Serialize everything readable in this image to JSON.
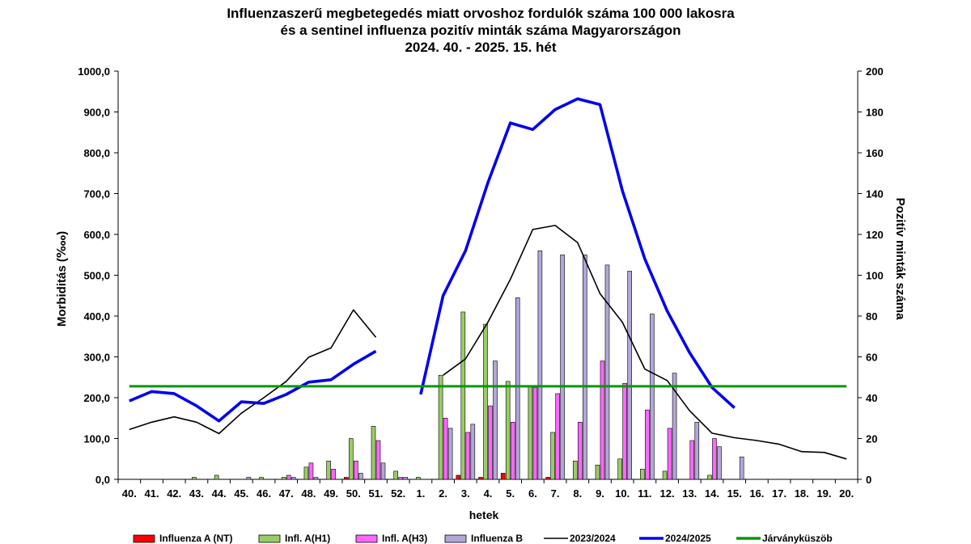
{
  "title_lines": [
    "Influenzaszerű megbetegedés miatt orvoshoz fordulók száma 100 000 lakosra",
    "és a sentinel influenza pozitív minták száma Magyarországon",
    "2024. 40. - 2025. 15. hét"
  ],
  "chart_data": {
    "type": "bar+line",
    "xlabel": "hetek",
    "ylabel": "Morbiditás (‱)",
    "ylabel_right": "Pozitív minták száma",
    "ylim": [
      0,
      1000
    ],
    "ylim_right": [
      0,
      200
    ],
    "yticks": [
      "0,0",
      "100,0",
      "200,0",
      "300,0",
      "400,0",
      "500,0",
      "600,0",
      "700,0",
      "800,0",
      "900,0",
      "1000,0"
    ],
    "yticks_right": [
      "0",
      "20",
      "40",
      "60",
      "80",
      "100",
      "120",
      "140",
      "160",
      "180",
      "200"
    ],
    "grid": false,
    "legend_position": "bottom",
    "categories": [
      "40.",
      "41.",
      "42.",
      "43.",
      "44.",
      "45.",
      "46.",
      "47.",
      "48.",
      "49.",
      "50.",
      "51.",
      "52.",
      "1.",
      "2.",
      "3.",
      "4.",
      "5.",
      "6.",
      "7.",
      "8.",
      "9.",
      "10.",
      "11.",
      "12.",
      "13.",
      "14.",
      "15.",
      "16.",
      "17.",
      "18.",
      "19.",
      "20."
    ],
    "bar_series": [
      {
        "name": "Influenza A (NT)",
        "color": "#ff0000",
        "axis": "right",
        "values": [
          0,
          0,
          0,
          0,
          0,
          0,
          0,
          0,
          0,
          0,
          1,
          0,
          0,
          0,
          0,
          2,
          1,
          3,
          0,
          1,
          0,
          0,
          0,
          0,
          0,
          0,
          0,
          0,
          null,
          null,
          null,
          null,
          null
        ]
      },
      {
        "name": "Infl. A(H1)",
        "color": "#99cc66",
        "axis": "right",
        "values": [
          0,
          0,
          0,
          1,
          2,
          0,
          1,
          1,
          6,
          9,
          20,
          26,
          4,
          1,
          51,
          82,
          76,
          48,
          46,
          23,
          9,
          7,
          10,
          5,
          4,
          0,
          2,
          0,
          null,
          null,
          null,
          null,
          null
        ]
      },
      {
        "name": "Infl. A(H3)",
        "color": "#ff66ff",
        "axis": "right",
        "values": [
          0,
          0,
          0,
          0,
          0,
          0,
          0,
          2,
          8,
          5,
          9,
          19,
          1,
          0,
          30,
          23,
          36,
          28,
          45,
          42,
          28,
          58,
          47,
          34,
          25,
          19,
          20,
          0,
          null,
          null,
          null,
          null,
          null
        ]
      },
      {
        "name": "Influenza B",
        "color": "#b3a6d9",
        "axis": "right",
        "values": [
          0,
          0,
          0,
          0,
          0,
          1,
          0,
          1,
          1,
          0,
          3,
          8,
          1,
          0,
          25,
          27,
          58,
          89,
          112,
          110,
          110,
          105,
          102,
          81,
          52,
          28,
          16,
          11,
          null,
          null,
          null,
          null,
          null
        ]
      }
    ],
    "line_series": [
      {
        "name": "2023/2024",
        "color": "#000000",
        "axis": "left",
        "values": [
          122,
          140,
          153,
          140,
          112,
          162,
          200,
          240,
          299,
          322,
          415,
          348,
          null,
          null,
          255,
          295,
          385,
          490,
          612,
          622,
          580,
          455,
          385,
          270,
          242,
          168,
          113,
          102,
          95,
          86,
          68,
          66,
          50
        ]
      },
      {
        "name": "2024/2025",
        "color": "#0000ee",
        "axis": "left",
        "values": [
          192,
          215,
          210,
          180,
          143,
          190,
          186,
          208,
          238,
          244,
          282,
          314,
          null,
          208,
          450,
          560,
          727,
          873,
          857,
          906,
          932,
          918,
          707,
          540,
          412,
          310,
          225,
          175,
          null,
          null,
          null,
          null,
          null
        ]
      },
      {
        "name": "Járványküszöb",
        "color": "#009900",
        "axis": "left",
        "values": [
          228,
          228,
          228,
          228,
          228,
          228,
          228,
          228,
          228,
          228,
          228,
          228,
          228,
          228,
          228,
          228,
          228,
          228,
          228,
          228,
          228,
          228,
          228,
          228,
          228,
          228,
          228,
          228,
          228,
          228,
          228,
          228,
          228
        ]
      }
    ]
  }
}
